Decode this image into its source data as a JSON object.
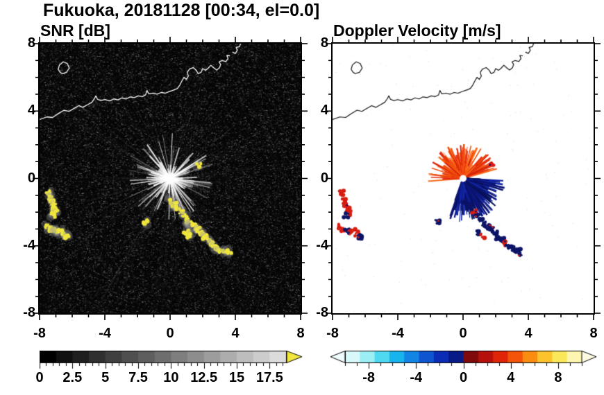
{
  "title": "Fukuoka, 20181128 [00:34, el=0.0]",
  "panels": {
    "snr": {
      "subtitle": "SNR [dB]"
    },
    "velocity": {
      "subtitle": "Doppler Velocity [m/s]"
    }
  },
  "chart_data": [
    {
      "type": "heatmap",
      "title": "SNR [dB]",
      "xlim": [
        -8,
        8
      ],
      "ylim": [
        -8,
        8
      ],
      "xticks": [
        -8,
        -4,
        0,
        4,
        8
      ],
      "yticks": [
        -8,
        -4,
        0,
        4,
        8
      ],
      "minor_tick_step": 1,
      "grid": false,
      "colorbar": {
        "ticks": [
          "0",
          "2.5",
          "5",
          "7.5",
          "10",
          "12.5",
          "15",
          "17.5"
        ],
        "tick_values": [
          0,
          2.5,
          5,
          7.5,
          10,
          12.5,
          15,
          17.5
        ],
        "range": [
          0,
          18.75
        ],
        "minor_step": 0.5,
        "major_step": 2.5,
        "style": "grayscale",
        "min_color": "#000000",
        "max_color": "#dcdcdc",
        "over_color": "#f0e63c",
        "arrows": "right"
      },
      "content": {
        "background": "dark low-SNR speckle noise 0-4 dB over full square",
        "radar_flare": {
          "x": 0,
          "y": 0,
          "radius_units": 2.3
        },
        "long_spokes_deg": [
          [
            -6,
            2.5
          ],
          [
            28,
            1.8
          ],
          [
            118,
            1.5
          ],
          [
            205,
            1.1
          ]
        ],
        "high_snr_color": "#f0e63c"
      }
    },
    {
      "type": "heatmap",
      "title": "Doppler Velocity [m/s]",
      "xlim": [
        -8,
        8
      ],
      "ylim": [
        -8,
        8
      ],
      "xticks": [
        -8,
        -4,
        0,
        4,
        8
      ],
      "yticks": [
        -8,
        -4,
        0,
        4,
        8
      ],
      "minor_tick_step": 1,
      "grid": false,
      "colorbar": {
        "ticks": [
          "-8",
          "-4",
          "0",
          "4",
          "8"
        ],
        "tick_values": [
          -8,
          -4,
          0,
          4,
          8
        ],
        "range": [
          -10,
          10
        ],
        "minor_step": 1,
        "major_step": 4,
        "style": "polar",
        "colors": [
          "#d8f9fa",
          "#9ceef5",
          "#4fd8f0",
          "#18b4ee",
          "#1284e4",
          "#0f55d0",
          "#0b2cb4",
          "#071a86",
          "#7e0a0c",
          "#b5100c",
          "#e02408",
          "#f4540a",
          "#fb8c12",
          "#fdc32c",
          "#fbe85a",
          "#fdf6b0"
        ],
        "under_arrow_color": "#effcfd",
        "over_arrow_color": "#fdfce2",
        "arrows": "both"
      },
      "content": {
        "outbound_sector_deg": [
          15,
          185
        ],
        "inbound_sector_deg": [
          250,
          358
        ],
        "outbound_color": "#d81c10",
        "inbound_color": "#0c1468",
        "center_hole": "white circle at radar origin"
      }
    }
  ],
  "map": {
    "coastline": [
      [
        -8,
        3.5
      ],
      [
        -7.55,
        3.65
      ],
      [
        -7.2,
        3.62
      ],
      [
        -6.85,
        3.85
      ],
      [
        -6.5,
        4.05
      ],
      [
        -6.2,
        3.98
      ],
      [
        -5.9,
        4.15
      ],
      [
        -5.6,
        4.32
      ],
      [
        -5.35,
        4.22
      ],
      [
        -5.05,
        4.38
      ],
      [
        -4.8,
        4.52
      ],
      [
        -4.65,
        4.72
      ],
      [
        -4.55,
        4.9
      ],
      [
        -4.45,
        4.7
      ],
      [
        -4.25,
        4.62
      ],
      [
        -4,
        4.68
      ],
      [
        -3.7,
        4.6
      ],
      [
        -3.45,
        4.72
      ],
      [
        -3.2,
        4.66
      ],
      [
        -2.95,
        4.78
      ],
      [
        -2.7,
        4.72
      ],
      [
        -2.45,
        4.84
      ],
      [
        -2.2,
        4.8
      ],
      [
        -1.95,
        4.9
      ],
      [
        -1.7,
        4.86
      ],
      [
        -1.5,
        4.96
      ],
      [
        -1.42,
        5.22
      ],
      [
        -1.3,
        5.02
      ],
      [
        -1.05,
        5.06
      ],
      [
        -0.8,
        5
      ],
      [
        -0.55,
        5.1
      ],
      [
        -0.3,
        5.06
      ],
      [
        -0.05,
        5.16
      ],
      [
        0.2,
        5.24
      ],
      [
        0.45,
        5.34
      ],
      [
        0.6,
        5.55
      ],
      [
        0.72,
        5.78
      ],
      [
        0.85,
        6
      ],
      [
        1,
        5.88
      ],
      [
        1.12,
        6.08
      ],
      [
        1.05,
        6.3
      ],
      [
        1.2,
        6.5
      ],
      [
        1.42,
        6.58
      ],
      [
        1.6,
        6.42
      ],
      [
        1.72,
        6.22
      ],
      [
        1.9,
        6.3
      ],
      [
        2,
        6.52
      ],
      [
        2.18,
        6.42
      ],
      [
        2.35,
        6.56
      ],
      [
        2.5,
        6.72
      ],
      [
        2.68,
        6.56
      ],
      [
        2.85,
        6.44
      ],
      [
        3.02,
        6.56
      ],
      [
        3.1,
        6.76
      ],
      [
        3,
        6.92
      ],
      [
        3.2,
        7
      ],
      [
        3.42,
        6.94
      ],
      [
        3.55,
        7.12
      ],
      [
        3.48,
        7.3
      ],
      [
        3.66,
        7.28
      ]
    ],
    "cape": [
      [
        3.82,
        7.5
      ],
      [
        4,
        7.42
      ],
      [
        4.12,
        7.6
      ],
      [
        4.05,
        7.78
      ],
      [
        4.25,
        7.82
      ],
      [
        4.32,
        8
      ]
    ],
    "island": [
      [
        -6.62,
        6.22
      ],
      [
        -6.35,
        6.3
      ],
      [
        -6.18,
        6.55
      ],
      [
        -6.3,
        6.82
      ],
      [
        -6.55,
        6.92
      ],
      [
        -6.78,
        6.74
      ],
      [
        -6.86,
        6.48
      ],
      [
        -6.74,
        6.3
      ]
    ]
  },
  "echo_cells": [
    [
      -7.45,
      -0.85,
      1
    ],
    [
      -7.32,
      -1.1,
      1
    ],
    [
      -7.22,
      -1.35,
      1
    ],
    [
      -7.15,
      -1.6,
      1
    ],
    [
      -7.08,
      -1.85,
      1
    ],
    [
      -7.02,
      -2.05,
      1
    ],
    [
      -7.18,
      -2.18,
      -1
    ],
    [
      -7.55,
      -2.85,
      1
    ],
    [
      -7.35,
      -3.0,
      1
    ],
    [
      -7.12,
      -3.12,
      -1
    ],
    [
      -6.92,
      -3.2,
      1
    ],
    [
      -6.72,
      -3.08,
      1
    ],
    [
      -6.5,
      -3.3,
      1
    ],
    [
      -6.32,
      -3.45,
      -1
    ],
    [
      -1.55,
      -2.6,
      -1
    ],
    [
      1.75,
      0.8,
      1
    ],
    [
      0.05,
      -1.35,
      -1
    ],
    [
      0.28,
      -1.58,
      -1
    ],
    [
      0.5,
      -1.8,
      -1
    ],
    [
      0.7,
      -2.02,
      1
    ],
    [
      0.9,
      -2.25,
      -1
    ],
    [
      1.1,
      -2.48,
      -1
    ],
    [
      1.3,
      -2.68,
      -1
    ],
    [
      1.52,
      -2.88,
      -1
    ],
    [
      1.72,
      -3.05,
      -1
    ],
    [
      0.98,
      -3.22,
      -1
    ],
    [
      1.18,
      -3.42,
      1
    ],
    [
      1.95,
      -3.28,
      -1
    ],
    [
      2.15,
      -3.48,
      -1
    ],
    [
      2.38,
      -3.68,
      -1
    ],
    [
      2.58,
      -3.88,
      1
    ],
    [
      2.75,
      -4.05,
      -1
    ],
    [
      2.95,
      -4.18,
      -1
    ],
    [
      3.15,
      -4.32,
      -1
    ],
    [
      3.4,
      -4.28,
      -1
    ],
    [
      3.6,
      -4.45,
      -1
    ]
  ]
}
